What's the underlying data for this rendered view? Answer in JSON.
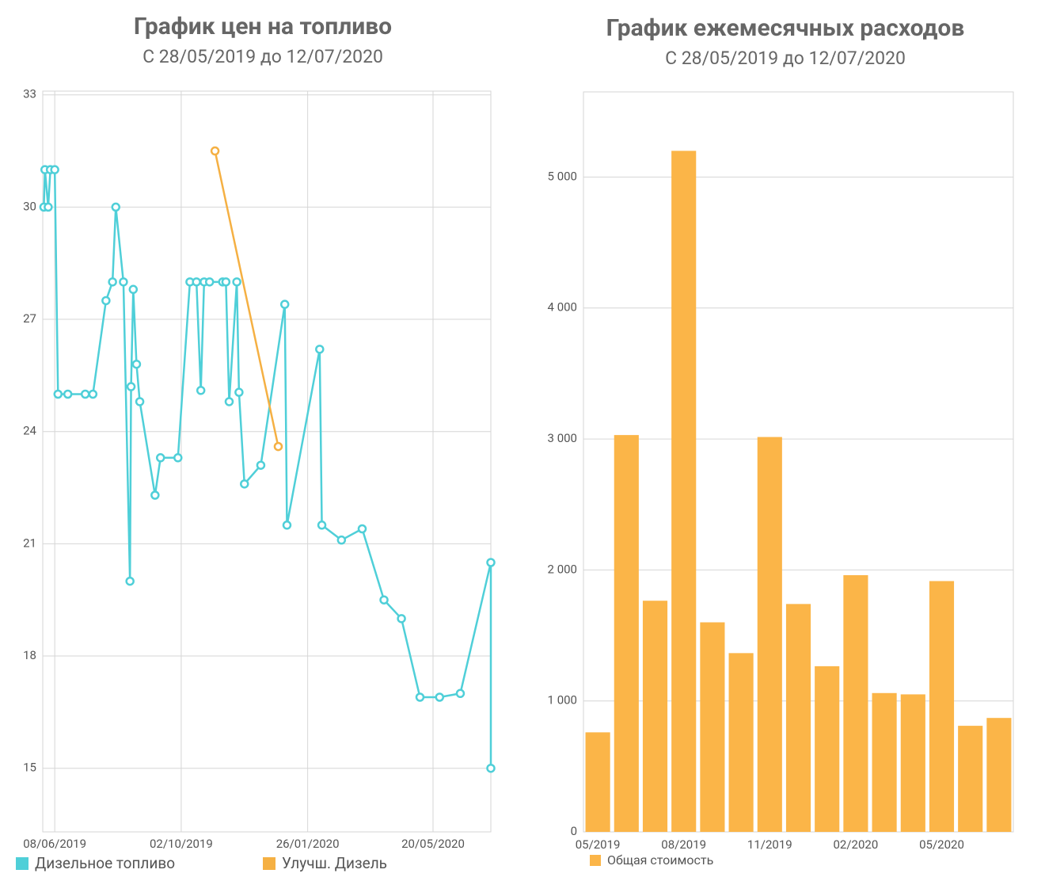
{
  "chart_data": [
    {
      "type": "line",
      "title": "График цен на топливо",
      "subtitle": "С 28/05/2019 до 12/07/2020",
      "legend": "bottom",
      "grid": true,
      "xlim": [
        "28/05/2019",
        "12/07/2020"
      ],
      "xticks": [
        "08/06/2019",
        "02/10/2019",
        "26/01/2020",
        "20/05/2020"
      ],
      "ylim": [
        13.3,
        33.1
      ],
      "yticks": [
        15,
        18,
        21,
        24,
        27,
        30,
        33
      ],
      "series": [
        {
          "name": "Дизельное топливо",
          "color": "#4fcfd8",
          "x": [
            "29/05/2019",
            "30/05/2019",
            "02/06/2019",
            "04/06/2019",
            "08/06/2019",
            "11/06/2019",
            "20/06/2019",
            "06/07/2019",
            "13/07/2019",
            "25/07/2019",
            "31/07/2019",
            "03/08/2019",
            "10/08/2019",
            "16/08/2019",
            "17/08/2019",
            "19/08/2019",
            "22/08/2019",
            "25/08/2019",
            "08/09/2019",
            "13/09/2019",
            "29/09/2019",
            "10/10/2019",
            "16/10/2019",
            "20/10/2019",
            "23/10/2019",
            "28/10/2019",
            "09/11/2019",
            "12/11/2019",
            "15/11/2019",
            "22/11/2019",
            "24/11/2019",
            "29/11/2019",
            "14/12/2019",
            "05/01/2020",
            "07/01/2020",
            "06/02/2020",
            "08/02/2020",
            "26/02/2020",
            "16/03/2020",
            "05/04/2020",
            "21/04/2020",
            "08/05/2020",
            "26/05/2020",
            "14/06/2020",
            "12/07/2020",
            "12/07/2020"
          ],
          "values": [
            30,
            31,
            30,
            31,
            31,
            25,
            25,
            25,
            25,
            27.5,
            28,
            30,
            28,
            20,
            25.2,
            27.8,
            25.8,
            24.8,
            22.3,
            23.3,
            23.3,
            28,
            28,
            25.1,
            28,
            28,
            28,
            28,
            24.8,
            28,
            25.05,
            22.6,
            23.1,
            27.4,
            21.5,
            26.2,
            21.5,
            21.1,
            21.4,
            19.5,
            19,
            16.9,
            16.9,
            17,
            20.5,
            15
          ]
        },
        {
          "name": "Улучш. Дизель",
          "color": "#f5b043",
          "x": [
            "02/11/2019",
            "30/12/2019"
          ],
          "values": [
            31.5,
            23.6
          ]
        }
      ]
    },
    {
      "type": "bar",
      "title": "График ежемесячных расходов",
      "subtitle": "С 28/05/2019 до 12/07/2020",
      "legend": "bottom",
      "grid": true,
      "categories": [
        "05/2019",
        null,
        null,
        "08/2019",
        null,
        null,
        "11/2019",
        null,
        null,
        "02/2020",
        null,
        null,
        "05/2020",
        null,
        null
      ],
      "ylim": [
        0,
        5650
      ],
      "yticks": [
        0,
        {
          "value": 1000,
          "label": "1 000"
        },
        {
          "value": 2000,
          "label": "2 000"
        },
        {
          "value": 3000,
          "label": "3 000"
        },
        {
          "value": 4000,
          "label": "4 000"
        },
        {
          "value": 5000,
          "label": "5 000"
        }
      ],
      "series": [
        {
          "name": "Общая стоимость",
          "color": "#fbb548",
          "values": [
            760,
            3030,
            1765,
            5200,
            1600,
            1365,
            3015,
            1740,
            1265,
            1960,
            1060,
            1050,
            1915,
            810,
            870
          ]
        }
      ]
    }
  ]
}
